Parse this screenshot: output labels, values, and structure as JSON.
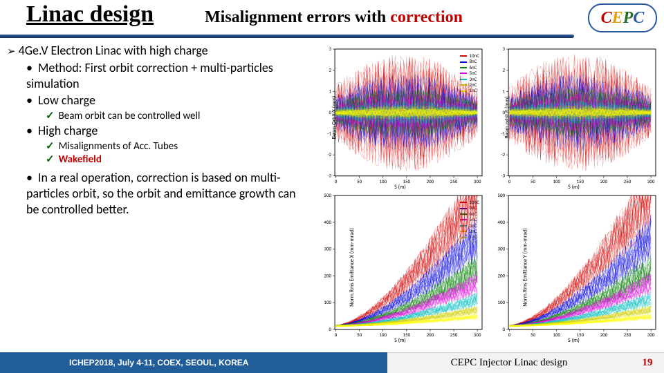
{
  "title": {
    "main": "Linac design",
    "sub_prefix": "Misalignment errors with ",
    "sub_red": "correction"
  },
  "logo": {
    "c1": "C",
    "c2": "E",
    "c3": "P",
    "c4": "C"
  },
  "text": {
    "l1": "4Ge.V Electron Linac with high charge",
    "l2": "Method: First orbit correction + multi-particles simulation",
    "l3": "Low charge",
    "l3a": "Beam orbit can be controlled well",
    "l4": "High charge",
    "l4a": "Misalignments of Acc. Tubes",
    "l4b": "Wakefield",
    "l5": "In a real operation, correction is based on multi-particles orbit, so the orbit and emittance growth can be controlled better."
  },
  "charts": {
    "series_colors": {
      "10nC": "#d00000",
      "8nC": "#0000e0",
      "6nC": "#008000",
      "5nC": "#e000e0",
      "3nC": "#00c0c0",
      "2nC": "#d0d000",
      "1nC": "#ffff00"
    },
    "top_left": {
      "type": "scatter",
      "ylabel": "Beam Orbit X (mm)",
      "xlabel": "S (m)",
      "xlim": [
        -2,
        310
      ],
      "ylim": [
        -3,
        3
      ],
      "xticks": [
        0,
        50,
        100,
        150,
        200,
        250,
        300
      ],
      "yticks": [
        -3,
        -2,
        -1,
        0,
        1,
        2,
        3
      ]
    },
    "top_right": {
      "type": "scatter",
      "ylabel": "Beam orbit Y (mm)",
      "xlabel": "S (m)",
      "xlim": [
        -2,
        310
      ],
      "ylim": [
        -3,
        3
      ],
      "xticks": [
        0,
        50,
        100,
        150,
        200,
        250,
        300
      ],
      "yticks": [
        -3,
        -2,
        -1,
        0,
        1,
        2,
        3
      ]
    },
    "bot_left": {
      "type": "scatter",
      "ylabel": "Norm.Rms Emittance X (mm-mrad)",
      "xlabel": "S (m)",
      "xlim": [
        -2,
        310
      ],
      "ylim": [
        0,
        500
      ],
      "xticks": [
        0,
        50,
        100,
        150,
        200,
        250,
        300
      ],
      "yticks": [
        0,
        100,
        200,
        300,
        400,
        500
      ]
    },
    "bot_right": {
      "type": "scatter",
      "ylabel": "Norm.Rms Emittance Y (mm-mrad)",
      "xlabel": "S (m)",
      "xlim": [
        -2,
        310
      ],
      "ylim": [
        0,
        500
      ],
      "xticks": [
        0,
        50,
        100,
        150,
        200,
        250,
        300
      ],
      "yticks": [
        0,
        100,
        200,
        300,
        400,
        500
      ]
    },
    "grid_color": "#d0d0d0",
    "axis_color": "#000000",
    "tick_fontsize": 7
  },
  "footer": {
    "left": "ICHEP2018, July 4-11, COEX, SEOUL, KOREA",
    "mid": "CEPC Injector Linac design",
    "page": "19"
  }
}
